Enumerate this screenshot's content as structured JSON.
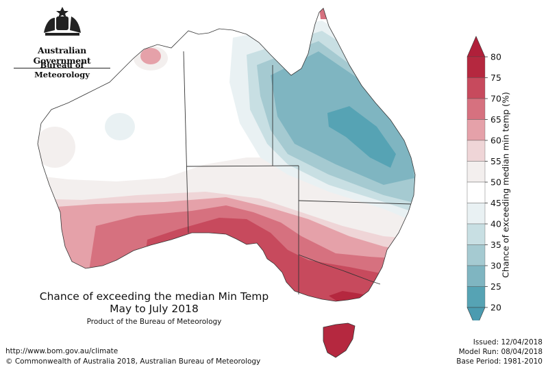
{
  "branding": {
    "government": "Australian Government",
    "bureau": "Bureau of Meteorology"
  },
  "title": {
    "line1": "Chance of exceeding the median Min Temp",
    "line2": "May to July 2018",
    "line3": "Product of the Bureau of Meteorology"
  },
  "footer": {
    "url": "http://www.bom.gov.au/climate",
    "copyright": "© Commonwealth of Australia 2018, Australian Bureau of Meteorology",
    "issued": "Issued: 12/04/2018",
    "model_run": "Model Run: 08/04/2018",
    "base_period": "Base Period: 1981-2010"
  },
  "legend": {
    "title": "Chance of exceeding median min temp (%)",
    "ticks": [
      "80",
      "75",
      "70",
      "65",
      "60",
      "55",
      "50",
      "45",
      "40",
      "35",
      "30",
      "25",
      "20"
    ],
    "bands": [
      {
        "range": "75-80",
        "color": "#b5283f"
      },
      {
        "range": "70-75",
        "color": "#c74a5d"
      },
      {
        "range": "65-70",
        "color": "#d6717f"
      },
      {
        "range": "60-65",
        "color": "#e5a1a9"
      },
      {
        "range": "55-60",
        "color": "#efd5d7"
      },
      {
        "range": "50-55",
        "color": "#f3efee"
      },
      {
        "range": "45-50",
        "color": "#ffffff"
      },
      {
        "range": "40-45",
        "color": "#e9f1f3"
      },
      {
        "range": "35-40",
        "color": "#c8dfe3"
      },
      {
        "range": "30-35",
        "color": "#a5cad1"
      },
      {
        "range": "25-30",
        "color": "#7fb5c1"
      },
      {
        "range": "20-25",
        "color": "#56a3b4"
      }
    ],
    "colors": {
      "top_arrow": "#b0203a",
      "bottom_arrow": "#4b9bb0"
    }
  }
}
